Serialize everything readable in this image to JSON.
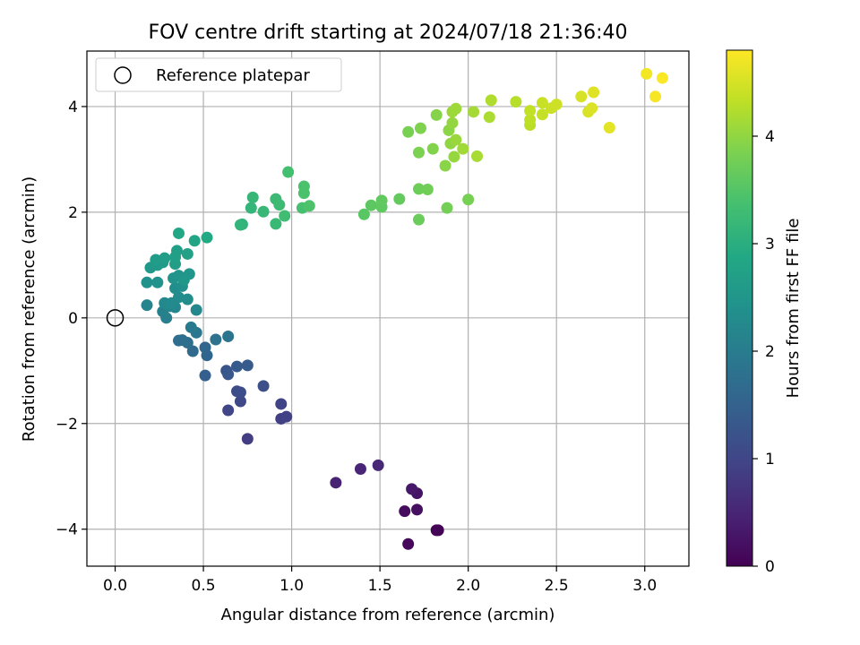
{
  "chart_data": {
    "type": "scatter",
    "title": "FOV centre drift starting at 2024/07/18 21:36:40",
    "xlabel": "Angular distance from reference (arcmin)",
    "ylabel": "Rotation from reference (arcmin)",
    "xlim": [
      -0.16,
      3.25
    ],
    "ylim": [
      -4.7,
      5.05
    ],
    "xticks": [
      "0.0",
      "0.5",
      "1.0",
      "1.5",
      "2.0",
      "2.5",
      "3.0"
    ],
    "xtick_values": [
      0,
      0.5,
      1.0,
      1.5,
      2.0,
      2.5,
      3.0
    ],
    "yticks": [
      "−4",
      "−2",
      "0",
      "2",
      "4"
    ],
    "ytick_values": [
      -4,
      -2,
      0,
      2,
      4
    ],
    "grid": true,
    "legend": {
      "placement": "upper-left",
      "entries": [
        "Reference platepar"
      ]
    },
    "reference_point": {
      "x": 0,
      "y": 0
    },
    "colorbar": {
      "label": "Hours from first FF file",
      "colormap": "viridis",
      "range": [
        0,
        4.8
      ],
      "ticks": [
        "0",
        "1",
        "2",
        "3",
        "4"
      ],
      "tick_values": [
        0,
        1,
        2,
        3,
        4
      ]
    },
    "points": [
      {
        "x": 1.83,
        "y": -4.02,
        "c": 0.02
      },
      {
        "x": 1.82,
        "y": -4.02,
        "c": 0.05
      },
      {
        "x": 1.66,
        "y": -4.28,
        "c": 0.1
      },
      {
        "x": 1.64,
        "y": -3.66,
        "c": 0.15
      },
      {
        "x": 1.71,
        "y": -3.63,
        "c": 0.2
      },
      {
        "x": 1.71,
        "y": -3.32,
        "c": 0.25
      },
      {
        "x": 1.68,
        "y": -3.24,
        "c": 0.3
      },
      {
        "x": 1.25,
        "y": -3.12,
        "c": 0.45
      },
      {
        "x": 1.39,
        "y": -2.86,
        "c": 0.5
      },
      {
        "x": 1.49,
        "y": -2.79,
        "c": 0.55
      },
      {
        "x": 0.75,
        "y": -2.29,
        "c": 0.85
      },
      {
        "x": 0.94,
        "y": -1.91,
        "c": 0.9
      },
      {
        "x": 0.97,
        "y": -1.87,
        "c": 0.92
      },
      {
        "x": 0.94,
        "y": -1.63,
        "c": 0.95
      },
      {
        "x": 0.64,
        "y": -1.75,
        "c": 1.0
      },
      {
        "x": 0.71,
        "y": -1.58,
        "c": 1.05
      },
      {
        "x": 0.69,
        "y": -1.39,
        "c": 1.1
      },
      {
        "x": 0.71,
        "y": -1.41,
        "c": 1.12
      },
      {
        "x": 0.84,
        "y": -1.29,
        "c": 1.15
      },
      {
        "x": 0.63,
        "y": -1.0,
        "c": 1.25
      },
      {
        "x": 0.64,
        "y": -1.07,
        "c": 1.3
      },
      {
        "x": 0.69,
        "y": -0.92,
        "c": 1.35
      },
      {
        "x": 0.75,
        "y": -0.9,
        "c": 1.38
      },
      {
        "x": 0.51,
        "y": -1.09,
        "c": 1.45
      },
      {
        "x": 0.52,
        "y": -0.71,
        "c": 1.55
      },
      {
        "x": 0.51,
        "y": -0.56,
        "c": 1.6
      },
      {
        "x": 0.44,
        "y": -0.63,
        "c": 1.65
      },
      {
        "x": 0.38,
        "y": -0.42,
        "c": 1.7
      },
      {
        "x": 0.36,
        "y": -0.43,
        "c": 1.72
      },
      {
        "x": 0.41,
        "y": -0.47,
        "c": 1.75
      },
      {
        "x": 0.57,
        "y": -0.41,
        "c": 1.8
      },
      {
        "x": 0.64,
        "y": -0.35,
        "c": 1.85
      },
      {
        "x": 0.46,
        "y": -0.28,
        "c": 1.9
      },
      {
        "x": 0.43,
        "y": -0.18,
        "c": 1.95
      },
      {
        "x": 0.29,
        "y": 0.0,
        "c": 2.05
      },
      {
        "x": 0.27,
        "y": 0.12,
        "c": 2.1
      },
      {
        "x": 0.18,
        "y": 0.24,
        "c": 2.15
      },
      {
        "x": 0.31,
        "y": 0.22,
        "c": 2.18
      },
      {
        "x": 0.34,
        "y": 0.2,
        "c": 2.2
      },
      {
        "x": 0.46,
        "y": 0.15,
        "c": 2.22
      },
      {
        "x": 0.28,
        "y": 0.28,
        "c": 2.25
      },
      {
        "x": 0.32,
        "y": 0.28,
        "c": 2.28
      },
      {
        "x": 0.36,
        "y": 0.39,
        "c": 2.3
      },
      {
        "x": 0.41,
        "y": 0.35,
        "c": 2.32
      },
      {
        "x": 0.34,
        "y": 0.56,
        "c": 2.35
      },
      {
        "x": 0.38,
        "y": 0.6,
        "c": 2.38
      },
      {
        "x": 0.18,
        "y": 0.67,
        "c": 2.4
      },
      {
        "x": 0.24,
        "y": 0.67,
        "c": 2.42
      },
      {
        "x": 0.33,
        "y": 0.75,
        "c": 2.45
      },
      {
        "x": 0.36,
        "y": 0.8,
        "c": 2.48
      },
      {
        "x": 0.42,
        "y": 0.83,
        "c": 2.5
      },
      {
        "x": 0.39,
        "y": 0.72,
        "c": 2.52
      },
      {
        "x": 0.2,
        "y": 0.95,
        "c": 2.55
      },
      {
        "x": 0.24,
        "y": 1.0,
        "c": 2.58
      },
      {
        "x": 0.27,
        "y": 1.05,
        "c": 2.6
      },
      {
        "x": 0.23,
        "y": 1.1,
        "c": 2.62
      },
      {
        "x": 0.28,
        "y": 1.13,
        "c": 2.65
      },
      {
        "x": 0.34,
        "y": 1.02,
        "c": 2.68
      },
      {
        "x": 0.34,
        "y": 1.15,
        "c": 2.7
      },
      {
        "x": 0.35,
        "y": 1.27,
        "c": 2.72
      },
      {
        "x": 0.41,
        "y": 1.21,
        "c": 2.74
      },
      {
        "x": 0.45,
        "y": 1.46,
        "c": 2.8
      },
      {
        "x": 0.36,
        "y": 1.6,
        "c": 2.85
      },
      {
        "x": 0.52,
        "y": 1.52,
        "c": 2.9
      },
      {
        "x": 0.72,
        "y": 1.77,
        "c": 3.1
      },
      {
        "x": 0.71,
        "y": 1.76,
        "c": 3.12
      },
      {
        "x": 0.77,
        "y": 2.08,
        "c": 3.15
      },
      {
        "x": 0.78,
        "y": 2.28,
        "c": 3.18
      },
      {
        "x": 0.84,
        "y": 2.01,
        "c": 3.2
      },
      {
        "x": 0.91,
        "y": 1.78,
        "c": 3.22
      },
      {
        "x": 0.91,
        "y": 2.25,
        "c": 3.25
      },
      {
        "x": 0.93,
        "y": 2.14,
        "c": 3.28
      },
      {
        "x": 0.96,
        "y": 1.93,
        "c": 3.3
      },
      {
        "x": 0.98,
        "y": 2.76,
        "c": 3.35
      },
      {
        "x": 1.06,
        "y": 2.08,
        "c": 3.38
      },
      {
        "x": 1.07,
        "y": 2.49,
        "c": 3.4
      },
      {
        "x": 1.07,
        "y": 2.36,
        "c": 3.42
      },
      {
        "x": 1.1,
        "y": 2.12,
        "c": 3.45
      },
      {
        "x": 1.41,
        "y": 1.96,
        "c": 3.55
      },
      {
        "x": 1.45,
        "y": 2.13,
        "c": 3.58
      },
      {
        "x": 1.51,
        "y": 2.1,
        "c": 3.6
      },
      {
        "x": 1.51,
        "y": 2.22,
        "c": 3.62
      },
      {
        "x": 1.61,
        "y": 2.25,
        "c": 3.65
      },
      {
        "x": 1.72,
        "y": 1.86,
        "c": 3.7
      },
      {
        "x": 1.72,
        "y": 2.44,
        "c": 3.72
      },
      {
        "x": 1.77,
        "y": 2.43,
        "c": 3.75
      },
      {
        "x": 1.88,
        "y": 2.08,
        "c": 3.78
      },
      {
        "x": 2.0,
        "y": 2.24,
        "c": 3.8
      },
      {
        "x": 1.66,
        "y": 3.52,
        "c": 3.82
      },
      {
        "x": 1.72,
        "y": 3.13,
        "c": 3.85
      },
      {
        "x": 1.73,
        "y": 3.59,
        "c": 3.87
      },
      {
        "x": 1.8,
        "y": 3.2,
        "c": 3.9
      },
      {
        "x": 1.82,
        "y": 3.84,
        "c": 3.92
      },
      {
        "x": 1.87,
        "y": 2.88,
        "c": 3.95
      },
      {
        "x": 1.89,
        "y": 3.55,
        "c": 3.97
      },
      {
        "x": 1.9,
        "y": 3.3,
        "c": 4.0
      },
      {
        "x": 1.91,
        "y": 3.69,
        "c": 4.02
      },
      {
        "x": 1.92,
        "y": 3.05,
        "c": 4.04
      },
      {
        "x": 1.93,
        "y": 3.37,
        "c": 4.06
      },
      {
        "x": 1.91,
        "y": 3.9,
        "c": 4.08
      },
      {
        "x": 1.93,
        "y": 3.96,
        "c": 4.1
      },
      {
        "x": 1.97,
        "y": 3.2,
        "c": 4.12
      },
      {
        "x": 2.03,
        "y": 3.9,
        "c": 4.15
      },
      {
        "x": 2.05,
        "y": 3.06,
        "c": 4.17
      },
      {
        "x": 2.12,
        "y": 3.8,
        "c": 4.2
      },
      {
        "x": 2.13,
        "y": 4.12,
        "c": 4.22
      },
      {
        "x": 2.27,
        "y": 4.09,
        "c": 4.28
      },
      {
        "x": 2.35,
        "y": 3.65,
        "c": 4.3
      },
      {
        "x": 2.35,
        "y": 3.75,
        "c": 4.32
      },
      {
        "x": 2.35,
        "y": 3.92,
        "c": 4.35
      },
      {
        "x": 2.42,
        "y": 3.85,
        "c": 4.38
      },
      {
        "x": 2.42,
        "y": 4.07,
        "c": 4.4
      },
      {
        "x": 2.47,
        "y": 3.97,
        "c": 4.42
      },
      {
        "x": 2.5,
        "y": 4.04,
        "c": 4.45
      },
      {
        "x": 2.64,
        "y": 4.19,
        "c": 4.5
      },
      {
        "x": 2.68,
        "y": 3.9,
        "c": 4.52
      },
      {
        "x": 2.7,
        "y": 3.97,
        "c": 4.55
      },
      {
        "x": 2.71,
        "y": 4.27,
        "c": 4.58
      },
      {
        "x": 2.8,
        "y": 3.6,
        "c": 4.6
      },
      {
        "x": 3.01,
        "y": 4.62,
        "c": 4.72
      },
      {
        "x": 3.06,
        "y": 4.19,
        "c": 4.75
      },
      {
        "x": 3.1,
        "y": 4.54,
        "c": 4.78
      }
    ]
  }
}
